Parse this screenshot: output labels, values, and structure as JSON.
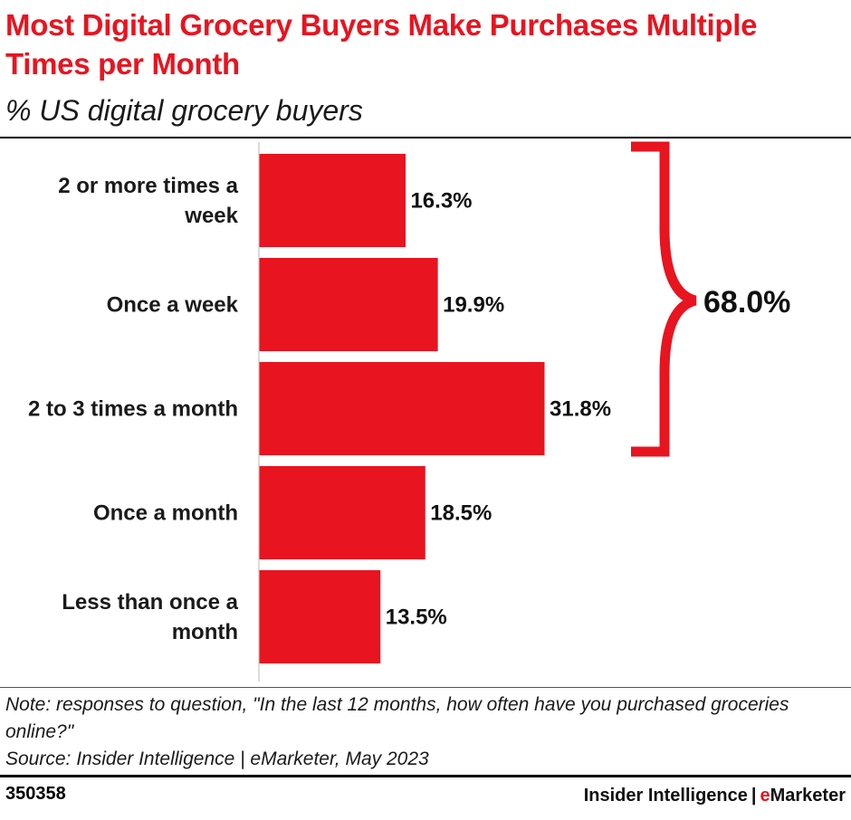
{
  "header": {
    "title": "Most Digital Grocery Buyers Make Purchases Multiple Times per Month",
    "subtitle": "% US digital grocery buyers"
  },
  "chart_data": {
    "type": "bar",
    "orientation": "horizontal",
    "categories": [
      [
        "2 or more times a",
        "week"
      ],
      [
        "Once a week"
      ],
      [
        "2 to 3 times a month"
      ],
      [
        "Once a month"
      ],
      [
        "Less than once a",
        "month"
      ]
    ],
    "values": [
      16.3,
      19.9,
      31.8,
      18.5,
      13.5
    ],
    "value_labels": [
      "16.3%",
      "19.9%",
      "31.8%",
      "18.5%",
      "13.5%"
    ],
    "xlim": [
      0,
      37
    ],
    "grid": false,
    "annotations": [
      {
        "type": "brace",
        "spans_categories": [
          0,
          2
        ],
        "label": "68.0%"
      }
    ],
    "colors": {
      "bar": "#e8141f",
      "brace": "#e8141f"
    }
  },
  "footer": {
    "note": "Note: responses to question, \"In the last 12 months, how often have you purchased groceries online?\"",
    "source": "Source: Insider Intelligence | eMarketer, May 2023",
    "chart_id": "350358",
    "brand_part1": "Insider Intelligence",
    "brand_sep": "|",
    "brand_e": "e",
    "brand_rest": "Marketer"
  },
  "colors": {
    "accent": "#e8141f",
    "text": "#1a1a1a"
  }
}
